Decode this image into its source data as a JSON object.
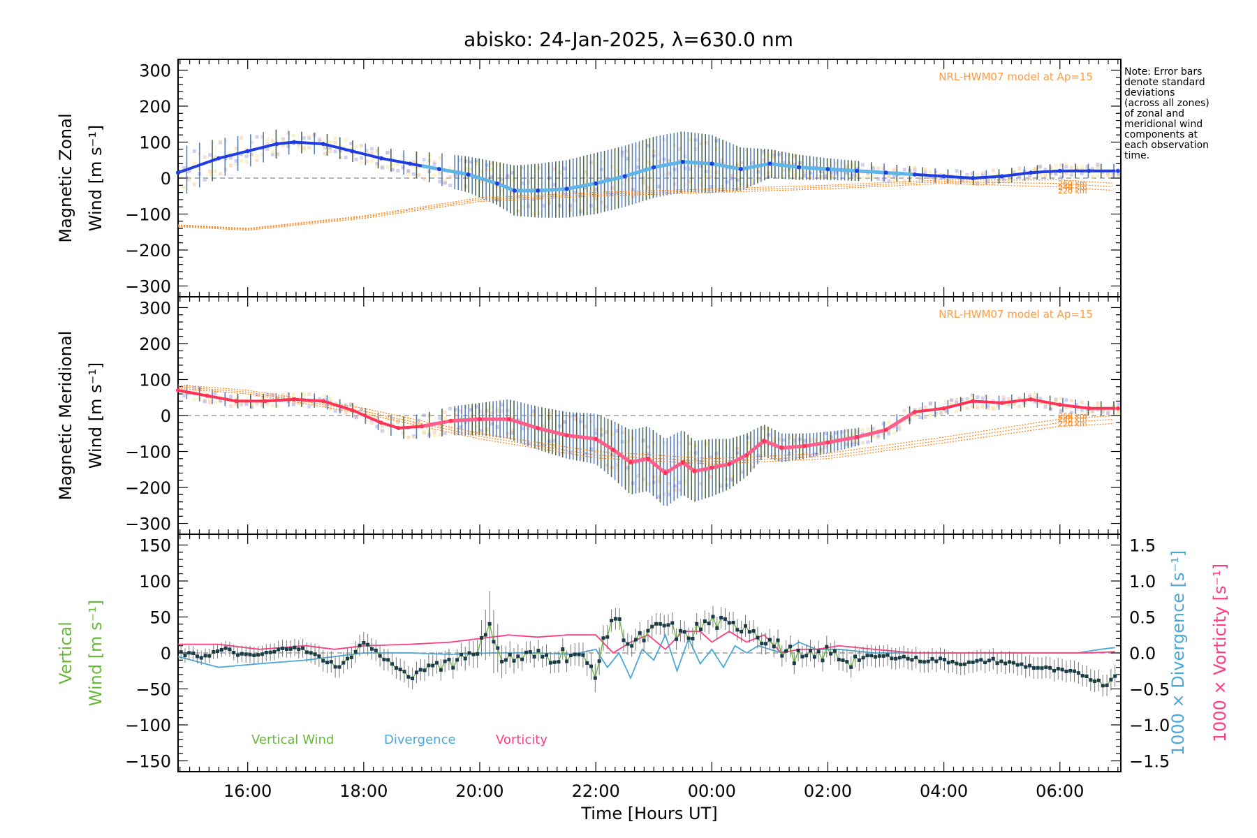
{
  "title": "abisko: 24-Jan-2025, λ=630.0 nm",
  "note": "Note: Error bars\ndenote standard\ndeviations\n(across all zones)\nof zonal and\nmeridional wind\ncomponents at\neach observation\ntime.",
  "colors": {
    "zonal": "#1f3ce0",
    "zonal_light": "#5fb4e8",
    "meridional": "#ff3355",
    "meridional_light": "#ff5d8a",
    "model": "#ff7f10",
    "model_label": "#ff9a40",
    "vertical": "#68b83a",
    "divergence": "#4aa8d8",
    "vorticity": "#ff3c7f",
    "errorbar": "#2b4d2b",
    "scatter": "#9a9ae6"
  },
  "chart_data": [
    {
      "type": "line",
      "panel": "zonal",
      "ylabel_line1": "Magnetic Zonal",
      "ylabel_line2": "Wind [m s⁻¹]",
      "ylim": [
        -330,
        330
      ],
      "yticks": [
        -300,
        -200,
        -100,
        0,
        100,
        200,
        300
      ],
      "xlim": [
        14.8,
        31.05
      ],
      "xticks": [
        16,
        18,
        20,
        22,
        24,
        26,
        28,
        30
      ],
      "xtick_labels": [
        "16:00",
        "18:00",
        "20:00",
        "22:00",
        "00:00",
        "02:00",
        "04:00",
        "06:00"
      ],
      "model_label": "NRL-HWM07 model at Ap=15",
      "model_alt_labels": [
        "260 km",
        "240 km",
        "220 km"
      ],
      "series": [
        {
          "name": "Zonal Wind",
          "x": [
            14.8,
            15.5,
            16.0,
            16.5,
            16.8,
            17.3,
            17.8,
            18.3,
            18.8,
            19.3,
            19.8,
            20.3,
            20.6,
            21.0,
            21.5,
            22.0,
            22.5,
            23.0,
            23.5,
            24.0,
            24.5,
            25.0,
            25.5,
            26.0,
            26.5,
            27.0,
            27.5,
            28.0,
            28.5,
            29.0,
            29.5,
            30.0,
            30.5,
            31.0
          ],
          "values": [
            15,
            55,
            75,
            95,
            100,
            95,
            75,
            55,
            40,
            25,
            10,
            -15,
            -35,
            -35,
            -30,
            -15,
            5,
            30,
            45,
            40,
            25,
            40,
            30,
            25,
            20,
            15,
            10,
            5,
            0,
            5,
            15,
            20,
            20,
            20
          ],
          "err": [
            70,
            55,
            45,
            40,
            30,
            30,
            30,
            30,
            35,
            45,
            50,
            60,
            70,
            75,
            80,
            85,
            85,
            85,
            85,
            80,
            60,
            40,
            35,
            30,
            28,
            25,
            22,
            20,
            20,
            20,
            20,
            20,
            20,
            20
          ]
        },
        {
          "name": "HWM 260 km",
          "x": [
            14.8,
            16.0,
            18.0,
            20.0,
            22.0,
            24.0,
            26.0,
            28.0,
            30.0,
            31.0
          ],
          "values": [
            -130,
            -140,
            -105,
            -55,
            -40,
            -30,
            -20,
            -5,
            -5,
            -15
          ]
        },
        {
          "name": "HWM 240 km",
          "x": [
            14.8,
            16.0,
            18.0,
            20.0,
            22.0,
            24.0,
            26.0,
            28.0,
            30.0,
            31.0
          ],
          "values": [
            -132,
            -142,
            -108,
            -60,
            -45,
            -35,
            -25,
            -10,
            -15,
            -25
          ]
        },
        {
          "name": "HWM 220 km",
          "x": [
            14.8,
            16.0,
            18.0,
            20.0,
            22.0,
            24.0,
            26.0,
            28.0,
            30.0,
            31.0
          ],
          "values": [
            -135,
            -145,
            -112,
            -65,
            -50,
            -40,
            -30,
            -15,
            -25,
            -35
          ]
        }
      ]
    },
    {
      "type": "line",
      "panel": "meridional",
      "ylabel_line1": "Magnetic Meridional",
      "ylabel_line2": "Wind [m s⁻¹]",
      "ylim": [
        -330,
        330
      ],
      "yticks": [
        -300,
        -200,
        -100,
        0,
        100,
        200,
        300
      ],
      "xlim": [
        14.8,
        31.05
      ],
      "xticks": [
        16,
        18,
        20,
        22,
        24,
        26,
        28,
        30
      ],
      "xtick_labels": [
        "16:00",
        "18:00",
        "20:00",
        "22:00",
        "00:00",
        "02:00",
        "04:00",
        "06:00"
      ],
      "model_label": "NRL-HWM07 model at Ap=15",
      "model_alt_labels": [
        "260 km",
        "240 km",
        "220 km"
      ],
      "series": [
        {
          "name": "Meridional Wind",
          "x": [
            14.8,
            15.3,
            15.8,
            16.3,
            16.8,
            17.3,
            17.8,
            18.3,
            18.6,
            19.0,
            19.5,
            20.0,
            20.5,
            21.0,
            21.5,
            22.0,
            22.3,
            22.6,
            22.9,
            23.2,
            23.5,
            23.7,
            24.0,
            24.3,
            24.6,
            24.9,
            25.2,
            25.6,
            26.0,
            26.5,
            27.0,
            27.5,
            28.0,
            28.5,
            29.0,
            29.5,
            30.0,
            30.5,
            31.0
          ],
          "values": [
            70,
            55,
            40,
            40,
            45,
            40,
            15,
            -20,
            -35,
            -30,
            -15,
            -10,
            -10,
            -35,
            -55,
            -65,
            -95,
            -130,
            -120,
            -160,
            -130,
            -155,
            -145,
            -135,
            -110,
            -70,
            -90,
            -85,
            -75,
            -60,
            -40,
            10,
            20,
            40,
            35,
            45,
            30,
            20,
            20
          ],
          "err": [
            20,
            20,
            20,
            20,
            20,
            20,
            20,
            25,
            30,
            35,
            40,
            45,
            55,
            60,
            65,
            70,
            80,
            90,
            90,
            95,
            90,
            85,
            80,
            70,
            60,
            45,
            40,
            35,
            30,
            25,
            25,
            25,
            20,
            20,
            20,
            20,
            20,
            20,
            20
          ]
        },
        {
          "name": "HWM 260 km",
          "x": [
            14.8,
            16.0,
            18.0,
            20.0,
            22.0,
            24.0,
            26.0,
            28.0,
            30.0,
            31.0
          ],
          "values": [
            85,
            70,
            20,
            -50,
            -100,
            -120,
            -105,
            -60,
            -10,
            0
          ]
        },
        {
          "name": "HWM 240 km",
          "x": [
            14.8,
            16.0,
            18.0,
            20.0,
            22.0,
            24.0,
            26.0,
            28.0,
            30.0,
            31.0
          ],
          "values": [
            80,
            65,
            12,
            -58,
            -110,
            -128,
            -113,
            -68,
            -20,
            -10
          ]
        },
        {
          "name": "HWM 220 km",
          "x": [
            14.8,
            16.0,
            18.0,
            20.0,
            22.0,
            24.0,
            26.0,
            28.0,
            30.0,
            31.0
          ],
          "values": [
            75,
            60,
            5,
            -65,
            -118,
            -135,
            -120,
            -76,
            -30,
            -22
          ]
        }
      ]
    },
    {
      "type": "line",
      "panel": "vertical",
      "ylabel_line1": "Vertical",
      "ylabel_line2": "Wind [m s⁻¹]",
      "right_ylabel_div": "1000 × Divergence [s⁻¹]",
      "right_ylabel_vort": "1000 × Vorticity [s⁻¹]",
      "xlabel": "Time [Hours UT]",
      "ylim": [
        -165,
        165
      ],
      "yticks": [
        -150,
        -100,
        -50,
        0,
        50,
        100,
        150
      ],
      "y2lim": [
        -1.65,
        1.65
      ],
      "y2ticks": [
        -1.5,
        -1.0,
        -0.5,
        0.0,
        0.5,
        1.0,
        1.5
      ],
      "y2tick_labels": [
        "−1.5",
        "−1.0",
        "−0.5",
        "0.0",
        "0.5",
        "1.0",
        "1.5"
      ],
      "xlim": [
        14.8,
        31.05
      ],
      "xticks": [
        16,
        18,
        20,
        22,
        24,
        26,
        28,
        30
      ],
      "xtick_labels": [
        "16:00",
        "18:00",
        "20:00",
        "22:00",
        "00:00",
        "02:00",
        "04:00",
        "06:00"
      ],
      "legend": [
        "Vertical Wind",
        "Divergence",
        "Vorticity"
      ],
      "series": [
        {
          "name": "Vertical Wind",
          "x": [
            14.8,
            15.2,
            15.6,
            16.0,
            16.4,
            16.8,
            17.2,
            17.6,
            18.0,
            18.4,
            18.8,
            19.2,
            19.6,
            20.0,
            20.2,
            20.4,
            20.8,
            21.2,
            21.6,
            22.0,
            22.3,
            22.6,
            22.9,
            23.2,
            23.5,
            23.8,
            24.0,
            24.3,
            24.6,
            24.9,
            25.2,
            25.6,
            26.0,
            26.4,
            26.8,
            27.2,
            27.6,
            28.0,
            28.4,
            28.8,
            29.2,
            29.6,
            30.0,
            30.4,
            30.8,
            31.0
          ],
          "values": [
            0,
            -5,
            5,
            -5,
            0,
            10,
            -5,
            -20,
            15,
            -10,
            -35,
            -15,
            -10,
            10,
            35,
            -10,
            -5,
            -5,
            0,
            -25,
            55,
            10,
            25,
            40,
            20,
            35,
            45,
            35,
            40,
            20,
            5,
            -10,
            0,
            -10,
            -5,
            -5,
            -10,
            -10,
            -15,
            -10,
            -15,
            -20,
            -25,
            -30,
            -45,
            -25
          ],
          "err": [
            10,
            10,
            10,
            12,
            12,
            12,
            15,
            15,
            15,
            15,
            15,
            15,
            15,
            20,
            50,
            20,
            15,
            15,
            15,
            20,
            15,
            15,
            15,
            15,
            15,
            15,
            15,
            15,
            15,
            15,
            15,
            15,
            15,
            15,
            15,
            15,
            15,
            15,
            15,
            15,
            15,
            15,
            15,
            15,
            15,
            15
          ]
        },
        {
          "name": "Divergence",
          "x": [
            14.8,
            15.5,
            16.2,
            17.0,
            17.5,
            18.0,
            18.8,
            19.5,
            20.2,
            21.0,
            21.6,
            22.0,
            22.2,
            22.4,
            22.6,
            22.8,
            23.0,
            23.2,
            23.4,
            23.6,
            23.8,
            24.0,
            24.2,
            24.4,
            24.6,
            24.8,
            25.0,
            25.2,
            25.5,
            25.8,
            26.2,
            26.8,
            27.5,
            28.2,
            29.0,
            29.8,
            30.3,
            30.7,
            31.0
          ],
          "values": [
            -0.05,
            -0.2,
            -0.15,
            -0.1,
            -0.05,
            0.0,
            0.0,
            -0.02,
            0.0,
            0.0,
            -0.02,
            0.05,
            -0.2,
            0.0,
            -0.35,
            0.05,
            -0.1,
            0.25,
            -0.25,
            0.2,
            -0.15,
            0.05,
            -0.2,
            0.1,
            0.0,
            0.1,
            0.05,
            0.0,
            0.15,
            0.05,
            0.05,
            0.0,
            0.0,
            0.0,
            0.0,
            0.0,
            0.0,
            0.05,
            0.08
          ]
        },
        {
          "name": "Vorticity",
          "x": [
            14.8,
            15.5,
            16.2,
            17.0,
            17.5,
            18.0,
            18.8,
            19.5,
            20.0,
            20.5,
            21.0,
            21.5,
            22.0,
            22.3,
            22.6,
            22.9,
            23.2,
            23.5,
            23.8,
            24.0,
            24.3,
            24.6,
            24.9,
            25.2,
            25.5,
            25.8,
            26.2,
            26.8,
            27.5,
            28.2,
            29.0,
            29.6,
            30.0,
            30.5,
            31.0
          ],
          "values": [
            0.12,
            0.12,
            0.05,
            0.1,
            0.05,
            0.1,
            0.12,
            0.15,
            0.2,
            0.25,
            0.22,
            0.25,
            0.25,
            0.0,
            0.15,
            0.25,
            0.05,
            0.3,
            0.3,
            0.15,
            0.3,
            0.15,
            0.25,
            0.0,
            0.05,
            0.05,
            0.1,
            0.05,
            0.0,
            0.0,
            0.0,
            0.0,
            0.0,
            0.0,
            0.02
          ]
        }
      ]
    }
  ]
}
